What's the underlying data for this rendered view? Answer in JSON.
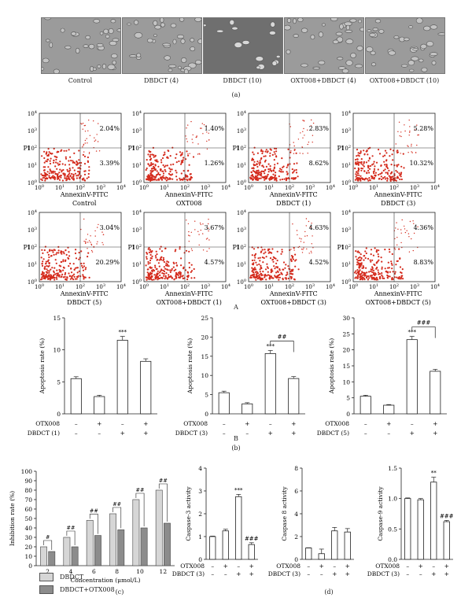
{
  "panel_labels": {
    "a": "(a)",
    "A": "A",
    "B": "B",
    "b": "(b)",
    "c": "(c)",
    "d": "(d)"
  },
  "micrographs": [
    "Control",
    "DBDCT (4)",
    "DBDCT (10)",
    "OXT008+DBDCT (4)",
    "OXT008+DBDCT (10)"
  ],
  "flow": {
    "xlabel": "AnnexinV-FITC",
    "ylabel": "PI",
    "ticks": [
      "10^0",
      "10^1",
      "10^2",
      "10^3",
      "10^4"
    ],
    "plots": [
      {
        "caption": "Control",
        "ur": "2.04%",
        "lr": "3.39%"
      },
      {
        "caption": "OXT008",
        "ur": "1.40%",
        "lr": "1.26%"
      },
      {
        "caption": "DBDCT (1)",
        "ur": "2.83%",
        "lr": "8.62%"
      },
      {
        "caption": "DBDCT (3)",
        "ur": "5.28%",
        "lr": "10.32%"
      },
      {
        "caption": "DBDCT (5)",
        "ur": "3.04%",
        "lr": "20.29%"
      },
      {
        "caption": "OXT008+DBDCT (1)",
        "ur": "3.67%",
        "lr": "4.57%"
      },
      {
        "caption": "OXT008+DBDCT (3)",
        "ur": "4.63%",
        "lr": "4.52%"
      },
      {
        "caption": "OXT008+DBDCT (5)",
        "ur": "4.36%",
        "lr": "8.83%"
      }
    ]
  },
  "chart_data": [
    {
      "type": "bar",
      "ylabel": "Apoptosis rate (%)",
      "ylim": [
        0,
        15
      ],
      "yticks": [
        0,
        5,
        10,
        15
      ],
      "row_labels": [
        "OTX008",
        "DBDCT (1)"
      ],
      "rows": [
        [
          "–",
          "+",
          "–",
          "+"
        ],
        [
          "–",
          "–",
          "+",
          "+"
        ]
      ],
      "values": [
        5.5,
        2.7,
        11.5,
        8.2
      ],
      "errors": [
        0.3,
        0.2,
        0.6,
        0.4
      ],
      "stars": [
        "",
        "",
        "***",
        ""
      ],
      "bracket": ""
    },
    {
      "type": "bar",
      "ylabel": "Apoptosis rate (%)",
      "ylim": [
        0,
        25
      ],
      "yticks": [
        0,
        5,
        10,
        15,
        20,
        25
      ],
      "row_labels": [
        "OTX008",
        "DBDCT (3)"
      ],
      "rows": [
        [
          "–",
          "+",
          "–",
          "+"
        ],
        [
          "–",
          "–",
          "+",
          "+"
        ]
      ],
      "values": [
        5.5,
        2.6,
        15.7,
        9.2
      ],
      "errors": [
        0.4,
        0.3,
        0.8,
        0.5
      ],
      "stars": [
        "",
        "",
        "***",
        ""
      ],
      "bracket": "##"
    },
    {
      "type": "bar",
      "ylabel": "Apoptosis rate (%)",
      "ylim": [
        0,
        30
      ],
      "yticks": [
        0,
        5,
        10,
        15,
        20,
        25,
        30
      ],
      "row_labels": [
        "OTX008",
        "DBDCT (5)"
      ],
      "rows": [
        [
          "–",
          "+",
          "–",
          "+"
        ],
        [
          "–",
          "–",
          "+",
          "+"
        ]
      ],
      "values": [
        5.5,
        2.7,
        23.2,
        13.3
      ],
      "errors": [
        0.3,
        0.2,
        1.0,
        0.6
      ],
      "stars": [
        "",
        "",
        "***",
        ""
      ],
      "bracket": "###"
    },
    {
      "type": "bar",
      "ylabel": "Inhibition rate (%)",
      "xlabel": "Concentration (μmol/L)",
      "ylim": [
        0,
        100
      ],
      "yticks": [
        0,
        10,
        20,
        30,
        40,
        50,
        60,
        70,
        80,
        90,
        100
      ],
      "categories": [
        "2",
        "4",
        "6",
        "8",
        "10",
        "12"
      ],
      "series": [
        {
          "name": "DBDCT",
          "values": [
            20,
            30,
            48,
            55,
            70,
            80
          ],
          "color": "#d6d6d6"
        },
        {
          "name": "DBDCT+OTX008",
          "values": [
            15,
            20,
            32,
            38,
            40,
            45
          ],
          "color": "#8c8c8c"
        }
      ],
      "brackets": [
        "#",
        "##",
        "##",
        "##",
        "##",
        "##"
      ]
    },
    {
      "type": "bar",
      "ylabel": "Caspase-3 activity",
      "ylim": [
        0,
        4
      ],
      "yticks": [
        0,
        1,
        2,
        3,
        4
      ],
      "row_labels": [
        "OTX008",
        "DBDCT (3)"
      ],
      "rows": [
        [
          "–",
          "+",
          "–",
          "+"
        ],
        [
          "–",
          "–",
          "+",
          "+"
        ]
      ],
      "values": [
        1.0,
        1.25,
        2.75,
        0.65
      ],
      "errors": [
        0.02,
        0.07,
        0.1,
        0.08
      ],
      "stars": [
        "",
        "",
        "***",
        "###"
      ],
      "bracket": ""
    },
    {
      "type": "bar",
      "ylabel": "Caspase 8 activity",
      "ylim": [
        0,
        8
      ],
      "yticks": [
        0,
        2,
        4,
        6,
        8
      ],
      "row_labels": [
        "OTX008",
        "DBDCT (3)"
      ],
      "rows": [
        [
          "–",
          "+",
          "–",
          "+"
        ],
        [
          "–",
          "–",
          "+",
          "+"
        ]
      ],
      "values": [
        1.0,
        0.5,
        2.5,
        2.4
      ],
      "errors": [
        0.02,
        0.4,
        0.3,
        0.3
      ],
      "stars": [
        "",
        "",
        "",
        ""
      ],
      "bracket": ""
    },
    {
      "type": "bar",
      "ylabel": "Caspase-9 activity",
      "ylim": [
        0,
        1.5
      ],
      "yticks": [
        "0.0",
        "0.5",
        "1.0",
        "1.5"
      ],
      "row_labels": [
        "OTX008",
        "DBDCT (3)"
      ],
      "rows": [
        [
          "–",
          "+",
          "–",
          "+"
        ],
        [
          "–",
          "–",
          "+",
          "+"
        ]
      ],
      "values": [
        1.0,
        0.98,
        1.27,
        0.62
      ],
      "errors": [
        0.01,
        0.02,
        0.08,
        0.02
      ],
      "stars": [
        "",
        "",
        "**",
        "###"
      ],
      "bracket": ""
    }
  ],
  "legend": [
    {
      "name": "DBDCT",
      "color": "#d6d6d6"
    },
    {
      "name": "DBDCT+OTX008",
      "color": "#8c8c8c"
    }
  ],
  "colors": {
    "flow_dots": "#d42a1c",
    "axis": "#222222"
  }
}
